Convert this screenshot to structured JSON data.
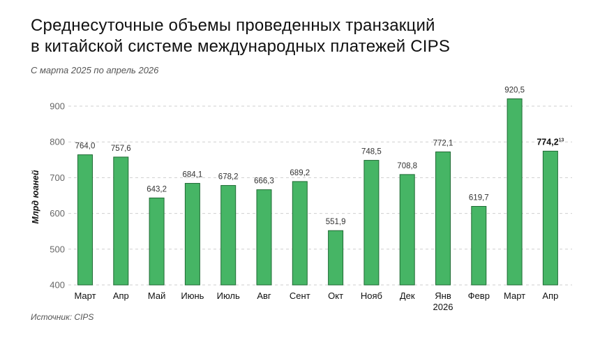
{
  "title_lines": [
    "Среднесуточные объемы проведенных транзакций",
    "в китайской системе международных платежей CIPS"
  ],
  "subtitle": "С марта 2025 по апрель 2026",
  "source": "Источник: CIPS",
  "chart_data": {
    "type": "bar",
    "ylabel": "Млрд юаней",
    "ylim": [
      400,
      950
    ],
    "yticks": [
      400,
      500,
      600,
      700,
      800,
      900
    ],
    "grid": "horizontal dashed",
    "bar_color": "#46b565",
    "bar_border": "#1f6b34",
    "categories": [
      [
        "Март"
      ],
      [
        "Апр"
      ],
      [
        "Май"
      ],
      [
        "Июнь"
      ],
      [
        "Июль"
      ],
      [
        "Авг"
      ],
      [
        "Сент"
      ],
      [
        "Окт"
      ],
      [
        "Нояб"
      ],
      [
        "Дек"
      ],
      [
        "Янв",
        "2026"
      ],
      [
        "Февр"
      ],
      [
        "Март"
      ],
      [
        "Апр"
      ]
    ],
    "values": [
      764.0,
      757.6,
      643.2,
      684.1,
      678.2,
      666.3,
      689.2,
      551.9,
      748.5,
      708.8,
      772.1,
      619.7,
      920.5,
      774.2
    ],
    "value_labels": [
      "764,0",
      "757,6",
      "643,2",
      "684,1",
      "678,2",
      "666,3",
      "689,2",
      "551,9",
      "748,5",
      "708,8",
      "772,1",
      "619,7",
      "920,5",
      "774,2"
    ],
    "highlight_index": 13,
    "highlight_superscript": "13"
  }
}
